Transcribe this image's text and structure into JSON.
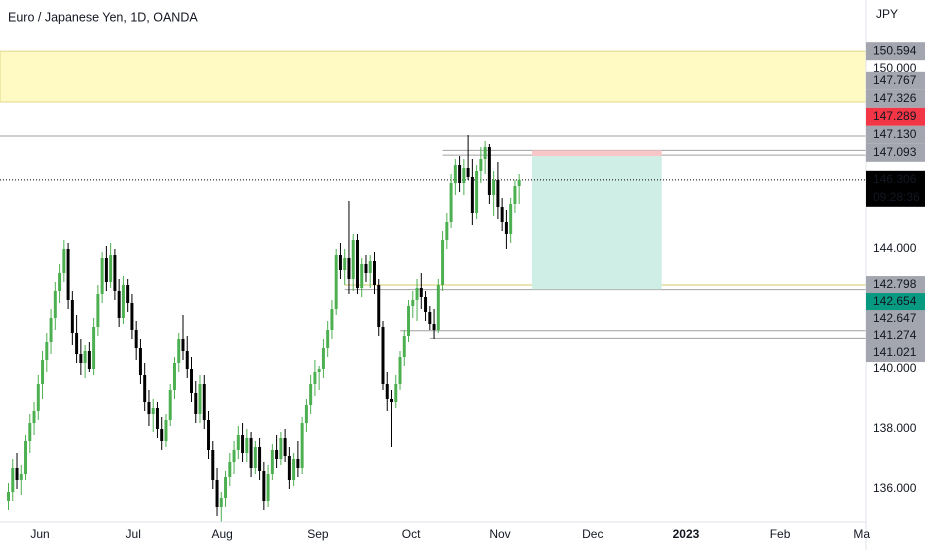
{
  "chart_data": {
    "type": "candlestick",
    "title": "Euro / Japanese Yen, 1D, OANDA",
    "currency": "JPY",
    "up_color": "#4caf50",
    "down_color": "#000000",
    "xlim": [
      -2,
      201.5
    ],
    "xticks": [
      {
        "value": 7.4,
        "label": "Jun"
      },
      {
        "value": 29.3,
        "label": "Jul"
      },
      {
        "value": 50.2,
        "label": "Aug"
      },
      {
        "value": 72.7,
        "label": "Sep"
      },
      {
        "value": 94.6,
        "label": "Oct"
      },
      {
        "value": 115.5,
        "label": "Nov"
      },
      {
        "value": 137.3,
        "label": "Dec"
      },
      {
        "value": 159.2,
        "label": "2023",
        "bold": true
      },
      {
        "value": 181.3,
        "label": "Feb"
      },
      {
        "value": 200.5,
        "label": "Ma"
      }
    ],
    "ylim": [
      134.9,
      152.3
    ],
    "yticks": [
      {
        "value": 136,
        "label": "136.000"
      },
      {
        "value": 138,
        "label": "138.000"
      },
      {
        "value": 140,
        "label": "140.000"
      },
      {
        "value": 144,
        "label": "144.000"
      },
      {
        "value": 150,
        "label": "150.000"
      }
    ],
    "candles": {
      "open": [
        135.6,
        135.9,
        136.7,
        136.3,
        136.5,
        137.6,
        138.2,
        138.6,
        139.5,
        140.3,
        140.9,
        141.7,
        142.6,
        143.2,
        144.0,
        142.3,
        141.2,
        140.5,
        140.2,
        140.6,
        140.0,
        141.4,
        142.5,
        143.7,
        142.9,
        143.8,
        142.6,
        141.7,
        142.8,
        142.2,
        141.3,
        140.7,
        139.8,
        138.9,
        138.5,
        138.7,
        138.0,
        137.6,
        138.3,
        139.3,
        140.2,
        141.0,
        140.6,
        140.0,
        139.2,
        138.5,
        139.5,
        138.3,
        137.3,
        136.3,
        135.4,
        135.7,
        136.4,
        136.9,
        137.3,
        137.8,
        137.2,
        137.7,
        136.7,
        137.4,
        136.6,
        135.6,
        136.5,
        137.3,
        137.0,
        137.7,
        137.1,
        136.3,
        137.0,
        136.7,
        138.2,
        138.8,
        139.5,
        139.9,
        140.0,
        140.7,
        141.3,
        142.0,
        143.8,
        143.3,
        143.7,
        143.0,
        144.3,
        142.7,
        143.5,
        143.2,
        143.6,
        142.8,
        141.4,
        139.5,
        139.0,
        138.9,
        139.5,
        140.4,
        141.1,
        142.1,
        142.3,
        142.7,
        142.4,
        141.9,
        141.5,
        141.3,
        142.8,
        144.3,
        144.9,
        146.2,
        146.8,
        146.2,
        146.7,
        146.4,
        145.2,
        146.6,
        147.0,
        147.4,
        145.8,
        146.3,
        145.4,
        144.9,
        144.5,
        145.5,
        146.1
      ],
      "high": [
        136.2,
        137.0,
        137.2,
        136.8,
        137.8,
        138.5,
        138.9,
        139.8,
        140.6,
        141.2,
        142.0,
        142.9,
        143.5,
        144.3,
        144.2,
        142.6,
        141.8,
        141.0,
        140.8,
        140.9,
        141.7,
        142.8,
        143.9,
        144.1,
        144.2,
        144.0,
        143.0,
        143.1,
        143.0,
        142.5,
        141.6,
        141.0,
        140.2,
        139.3,
        139.0,
        138.9,
        138.4,
        138.5,
        139.5,
        140.4,
        141.2,
        141.8,
        141.1,
        140.4,
        139.6,
        139.8,
        139.8,
        138.6,
        137.6,
        136.7,
        135.9,
        136.6,
        137.2,
        137.6,
        138.1,
        138.2,
        138.0,
        137.9,
        137.6,
        137.7,
        136.9,
        136.8,
        137.5,
        137.8,
        137.9,
        138.0,
        137.4,
        137.2,
        137.6,
        138.4,
        139.0,
        139.8,
        140.3,
        140.1,
        141.0,
        141.6,
        142.3,
        144.0,
        144.2,
        144.0,
        145.6,
        144.5,
        144.5,
        143.7,
        143.8,
        143.8,
        143.9,
        143.0,
        141.6,
        139.9,
        139.3,
        139.8,
        140.6,
        141.3,
        142.3,
        142.6,
        143.0,
        143.2,
        142.6,
        142.1,
        142.0,
        143.0,
        144.6,
        145.2,
        146.5,
        147.0,
        147.1,
        147.0,
        147.8,
        147.0,
        146.8,
        147.4,
        147.6,
        147.5,
        146.6,
        146.9,
        145.7,
        145.3,
        145.7,
        146.3,
        146.5
      ],
      "low": [
        135.3,
        135.6,
        136.0,
        135.8,
        136.3,
        137.2,
        137.8,
        138.3,
        139.0,
        139.9,
        140.5,
        141.3,
        142.2,
        142.9,
        142.0,
        140.8,
        140.2,
        139.8,
        139.7,
        139.9,
        139.8,
        141.1,
        142.2,
        142.6,
        142.7,
        142.3,
        141.4,
        141.5,
        141.9,
        141.0,
        140.3,
        139.5,
        138.6,
        138.1,
        137.9,
        137.7,
        137.3,
        137.4,
        138.1,
        139.0,
        139.9,
        140.3,
        139.7,
        138.9,
        138.2,
        138.2,
        138.0,
        137.0,
        136.0,
        135.1,
        134.9,
        135.4,
        136.1,
        136.5,
        137.0,
        136.9,
        136.9,
        136.4,
        136.5,
        136.3,
        135.3,
        135.4,
        136.3,
        136.7,
        136.8,
        136.9,
        136.0,
        136.1,
        136.4,
        136.5,
        137.9,
        138.5,
        139.1,
        139.3,
        139.7,
        140.4,
        141.0,
        141.8,
        143.0,
        142.8,
        142.5,
        142.6,
        142.5,
        142.4,
        142.9,
        142.7,
        142.5,
        141.1,
        139.3,
        138.6,
        137.4,
        138.7,
        139.3,
        140.1,
        140.9,
        141.7,
        141.6,
        142.0,
        141.6,
        141.3,
        141.0,
        141.2,
        142.6,
        144.0,
        144.7,
        145.8,
        145.9,
        145.8,
        146.3,
        144.8,
        145.0,
        146.2,
        146.5,
        145.5,
        145.1,
        145.0,
        144.6,
        144.0,
        144.2,
        145.2,
        145.5
      ],
      "close": [
        135.9,
        136.7,
        136.3,
        136.5,
        137.6,
        138.2,
        138.6,
        139.5,
        140.3,
        140.9,
        141.7,
        142.6,
        143.2,
        144.0,
        142.3,
        141.2,
        140.5,
        140.2,
        140.6,
        140.0,
        141.4,
        142.5,
        143.7,
        142.9,
        143.8,
        142.6,
        141.7,
        142.8,
        142.2,
        141.3,
        140.7,
        139.8,
        138.9,
        138.5,
        138.7,
        138.0,
        137.6,
        138.3,
        139.3,
        140.2,
        141.0,
        140.6,
        140.0,
        139.2,
        138.5,
        139.5,
        138.3,
        137.3,
        136.3,
        135.4,
        135.7,
        136.4,
        136.9,
        137.3,
        137.8,
        137.2,
        137.7,
        136.7,
        137.4,
        136.6,
        135.6,
        136.5,
        137.3,
        137.0,
        137.7,
        137.1,
        136.3,
        137.0,
        136.7,
        138.2,
        138.8,
        139.5,
        139.9,
        140.0,
        140.7,
        141.3,
        142.0,
        143.8,
        143.3,
        143.7,
        143.0,
        144.3,
        142.7,
        143.5,
        143.2,
        143.6,
        142.8,
        141.4,
        139.5,
        139.0,
        138.9,
        139.5,
        140.4,
        141.1,
        142.1,
        142.3,
        142.7,
        142.4,
        141.9,
        141.5,
        141.3,
        142.8,
        144.3,
        144.9,
        146.2,
        146.8,
        146.2,
        146.7,
        146.4,
        145.2,
        146.6,
        147.0,
        147.4,
        145.8,
        146.3,
        145.4,
        144.9,
        144.5,
        145.5,
        146.1,
        146.306
      ]
    },
    "zone": {
      "top": 150.594,
      "bottom": 148.9,
      "color": "#fff9c4",
      "border": "#e0d98c"
    },
    "lines": [
      {
        "value": 147.767,
        "from": -2,
        "color": "#a0a0a0"
      },
      {
        "value": 147.289,
        "from": 102,
        "color": "#a0a0a0"
      },
      {
        "value": 147.13,
        "from": 102,
        "color": "#a0a0a0"
      },
      {
        "value": 142.798,
        "from": 79,
        "color": "#d4c96a"
      },
      {
        "value": 142.647,
        "from": 79,
        "color": "#a0a0a0"
      },
      {
        "value": 141.274,
        "from": 92,
        "color": "#a0a0a0"
      },
      {
        "value": 141.021,
        "from": 99,
        "color": "#a0a0a0"
      }
    ],
    "position": {
      "from": 123,
      "to": 153.5,
      "stop": 147.289,
      "entry": 147.093,
      "target": 142.654,
      "stop_color": "#f7c6c9",
      "target_color": "#cfeee6"
    },
    "last_price": {
      "value": 146.306,
      "color": "#000000"
    },
    "price_labels": [
      {
        "value": 150.594,
        "label": "150.594",
        "bg": "#a3a6af"
      },
      {
        "value": 147.767,
        "label": "147.767",
        "bg": "#a3a6af"
      },
      {
        "value": 147.326,
        "label": "147.326",
        "bg": "#a3a6af"
      },
      {
        "value": 147.289,
        "label": "147.289",
        "bg": "#f23645"
      },
      {
        "value": 147.13,
        "label": "147.130",
        "bg": "#a3a6af"
      },
      {
        "value": 147.093,
        "label": "147.093",
        "bg": "#a3a6af"
      },
      {
        "value": 146.306,
        "label": "146.306",
        "bg": "#000000",
        "countdown": "09:28:36"
      },
      {
        "value": 142.798,
        "label": "142.798",
        "bg": "#a3a6af"
      },
      {
        "value": 142.654,
        "label": "142.654",
        "bg": "#089981"
      },
      {
        "value": 142.647,
        "label": "142.647",
        "bg": "#a3a6af"
      },
      {
        "value": 141.274,
        "label": "141.274",
        "bg": "#a3a6af"
      },
      {
        "value": 141.021,
        "label": "141.021",
        "bg": "#a3a6af"
      }
    ]
  }
}
